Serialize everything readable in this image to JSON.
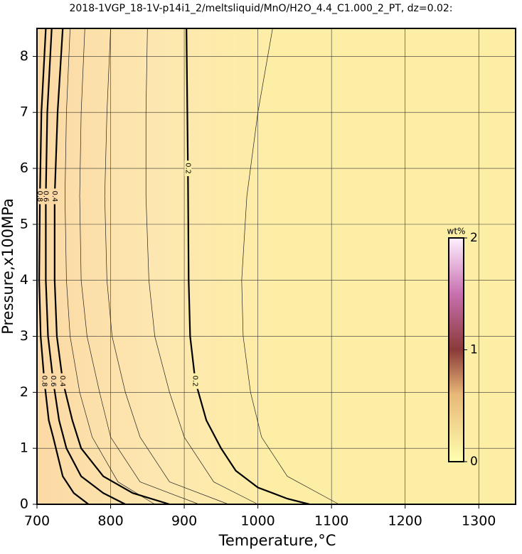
{
  "chart_data": {
    "type": "contour",
    "title": "2018-1VGP_18-1V-p14i1_2/meltsliquid/MnO/H2O_4.4_C1.000_2_PT, dz=0.02:",
    "x_label": "Temperature,°C",
    "y_label": "Pressure,x100MPa",
    "xlim": [
      700,
      1350
    ],
    "ylim": [
      0,
      8.5
    ],
    "xticks": [
      700,
      800,
      900,
      1000,
      1100,
      1200,
      1300
    ],
    "yticks": [
      0,
      1,
      2,
      3,
      4,
      5,
      6,
      7,
      8
    ],
    "grid": true,
    "series": [
      {
        "level": 0.2,
        "x": [
          903,
          905,
          906,
          908,
          915,
          930,
          950,
          970,
          1000,
          1040,
          1070
        ],
        "y": [
          8.5,
          6,
          4,
          3,
          2.2,
          1.5,
          1.0,
          0.6,
          0.3,
          0.1,
          0
        ]
      },
      {
        "level": 0.4,
        "x": [
          735,
          728,
          724,
          724,
          727,
          735,
          748,
          760,
          790,
          830,
          880
        ],
        "y": [
          8.5,
          7,
          5.5,
          4,
          3,
          2.2,
          1.5,
          1.0,
          0.5,
          0.2,
          0
        ]
      },
      {
        "level": 0.6,
        "x": [
          720,
          714,
          712,
          712,
          715,
          722,
          730,
          740,
          760,
          790,
          820
        ],
        "y": [
          8.5,
          7,
          5.5,
          4,
          3,
          2.2,
          1.5,
          1.0,
          0.5,
          0.2,
          0
        ]
      },
      {
        "level": 0.8,
        "x": [
          712,
          706,
          704,
          703,
          705,
          710,
          716,
          722,
          735,
          750,
          770
        ],
        "y": [
          8.5,
          7,
          5.5,
          4,
          3,
          2.2,
          1.5,
          1.2,
          0.5,
          0.2,
          0
        ]
      }
    ],
    "thin_contours": [
      {
        "x": [
          1020,
          1000,
          985,
          978,
          980,
          990,
          1005,
          1040,
          1110
        ],
        "y": [
          8.5,
          7,
          5.5,
          4,
          3,
          2,
          1.2,
          0.5,
          0
        ]
      },
      {
        "x": [
          850,
          848,
          848,
          852,
          860,
          880,
          900,
          940,
          1000
        ],
        "y": [
          8.5,
          7,
          5.5,
          4,
          3,
          2,
          1.2,
          0.4,
          0
        ]
      },
      {
        "x": [
          800,
          795,
          792,
          795,
          802,
          820,
          840,
          880,
          960
        ],
        "y": [
          8.5,
          7,
          5.5,
          4,
          3,
          2,
          1.2,
          0.4,
          0
        ]
      },
      {
        "x": [
          765,
          760,
          758,
          760,
          768,
          785,
          800,
          840,
          920
        ],
        "y": [
          8.5,
          7,
          5.5,
          4,
          3,
          2,
          1.2,
          0.4,
          0
        ]
      },
      {
        "x": [
          745,
          740,
          738,
          740,
          745,
          758,
          775,
          810,
          860
        ],
        "y": [
          8.5,
          7,
          5.5,
          4,
          3,
          2,
          1.2,
          0.4,
          0
        ]
      }
    ],
    "colorbar": {
      "label": "wt%",
      "lim": [
        0,
        2
      ],
      "ticks": [
        0,
        1,
        2
      ]
    }
  }
}
